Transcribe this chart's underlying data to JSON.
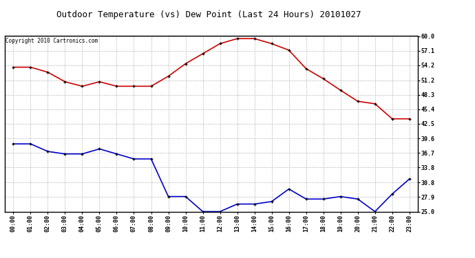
{
  "title": "Outdoor Temperature (vs) Dew Point (Last 24 Hours) 20101027",
  "copyright": "Copyright 2010 Cartronics.com",
  "x_labels": [
    "00:00",
    "01:00",
    "02:00",
    "03:00",
    "04:00",
    "05:00",
    "06:00",
    "07:00",
    "08:00",
    "09:00",
    "10:00",
    "11:00",
    "12:00",
    "13:00",
    "14:00",
    "15:00",
    "16:00",
    "17:00",
    "18:00",
    "19:00",
    "20:00",
    "21:00",
    "22:00",
    "23:00"
  ],
  "temp_data": [
    53.8,
    53.8,
    52.8,
    50.9,
    50.0,
    50.9,
    50.0,
    50.0,
    50.0,
    52.0,
    54.5,
    56.5,
    58.5,
    59.5,
    59.5,
    58.5,
    57.2,
    53.5,
    51.5,
    49.2,
    47.0,
    46.5,
    43.5,
    43.5
  ],
  "dew_data": [
    38.5,
    38.5,
    37.0,
    36.5,
    36.5,
    37.5,
    36.5,
    35.5,
    35.5,
    28.0,
    28.0,
    25.0,
    25.0,
    26.5,
    26.5,
    27.0,
    29.5,
    27.5,
    27.5,
    28.0,
    27.5,
    25.0,
    28.5,
    31.5
  ],
  "temp_color": "#cc0000",
  "dew_color": "#0000cc",
  "bg_color": "#ffffff",
  "grid_color": "#bbbbbb",
  "ylim_min": 25.0,
  "ylim_max": 60.0,
  "yticks": [
    25.0,
    27.9,
    30.8,
    33.8,
    36.7,
    39.6,
    42.5,
    45.4,
    48.3,
    51.2,
    54.2,
    57.1,
    60.0
  ],
  "title_fontsize": 9,
  "copyright_fontsize": 5.5,
  "tick_fontsize": 6,
  "marker_size": 3,
  "line_width": 1.2
}
